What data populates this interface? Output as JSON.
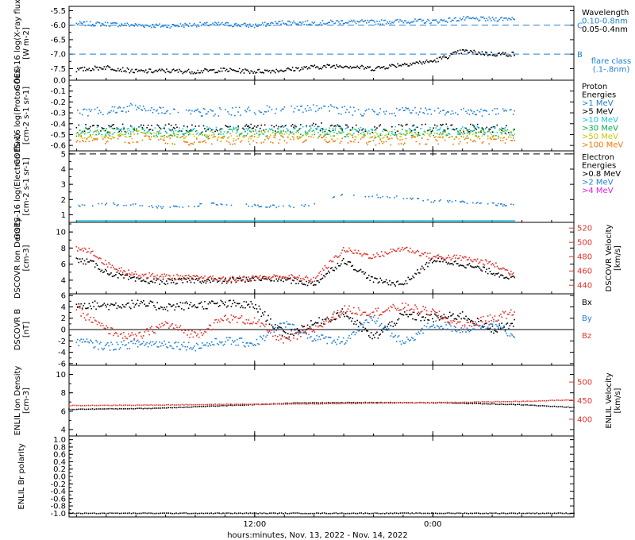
{
  "colors": {
    "black": "#000000",
    "blue": "#1e7fd6",
    "red": "#e0302a",
    "green": "#00b050",
    "yellow": "#c8c800",
    "orange": "#f07800",
    "cyan": "#19c6e0",
    "magenta": "#e020e0"
  },
  "x_axis": {
    "title": "hours:minutes, Nov. 13, 2022 - Nov. 14, 2022",
    "range_hours": [
      -0.5,
      33.5
    ],
    "ticks": [
      {
        "hour": 12,
        "label": "12:00"
      },
      {
        "hour": 24,
        "label": "0:00"
      }
    ]
  },
  "chart_data": [
    {
      "id": "goes-xray",
      "type": "scatter",
      "ylabel": "GOES-16 log(X-ray flux) [W m-2]",
      "ylim": [
        -7.9,
        -5.35
      ],
      "yticks": [
        "-5.5",
        "-6.0",
        "-6.5",
        "-7.0",
        "-7.5"
      ],
      "ytick_values": [
        -5.5,
        -6.0,
        -6.5,
        -7.0,
        -7.5
      ],
      "flare_levels": [
        {
          "value": -6.0,
          "label": "C"
        },
        {
          "value": -7.0,
          "label": "B"
        }
      ],
      "legend": {
        "title": "Wavelength",
        "items": [
          "0.10-0.8nm",
          "0.05-0.4nm"
        ],
        "note": [
          "flare class",
          "(.1-.8nm)"
        ]
      },
      "series": [
        {
          "name": "0.10-0.8nm",
          "color": "blue",
          "x": [
            0,
            2,
            4,
            6,
            8,
            10,
            12,
            14,
            16,
            18,
            20,
            22,
            24,
            26,
            28,
            29.5
          ],
          "y": [
            -5.95,
            -5.96,
            -6.0,
            -6.03,
            -5.98,
            -5.97,
            -6.02,
            -5.9,
            -5.93,
            -5.88,
            -5.9,
            -5.86,
            -5.87,
            -5.78,
            -5.8,
            -5.75
          ]
        },
        {
          "name": "0.05-0.4nm",
          "color": "black",
          "x": [
            0,
            2,
            4,
            6,
            8,
            10,
            12,
            14,
            16,
            18,
            20,
            22,
            24,
            26,
            28,
            29.5
          ],
          "y": [
            -7.55,
            -7.45,
            -7.6,
            -7.58,
            -7.6,
            -7.55,
            -7.6,
            -7.55,
            -7.45,
            -7.4,
            -7.5,
            -7.35,
            -7.25,
            -6.9,
            -7.0,
            -7.0
          ]
        }
      ]
    },
    {
      "id": "goes-proton",
      "type": "scatter",
      "ylabel": "GOES-16 log(Proton flux) [cm-2 s-1 sr-1]",
      "ylim": [
        -0.65,
        0.0
      ],
      "yticks": [
        "0.0",
        "-0.1",
        "-0.2",
        "-0.3",
        "-0.4",
        "-0.5",
        "-0.6"
      ],
      "ytick_values": [
        0.0,
        -0.1,
        -0.2,
        -0.3,
        -0.4,
        -0.5,
        -0.6
      ],
      "legend": {
        "title": [
          "Proton",
          "Energies"
        ],
        "items": [
          ">1 MeV",
          ">5 MeV",
          ">10 MeV",
          ">30 MeV",
          ">50 MeV",
          ">100 MeV"
        ]
      },
      "series": [
        {
          "name": ">1 MeV",
          "color": "blue",
          "x": [
            0,
            4,
            8,
            12,
            16,
            20,
            24,
            29.5
          ],
          "y": [
            -0.3,
            -0.25,
            -0.3,
            -0.28,
            -0.25,
            -0.3,
            -0.28,
            -0.3
          ]
        },
        {
          "name": ">5 MeV",
          "color": "black",
          "x": [
            0,
            4,
            8,
            12,
            16,
            20,
            24,
            29.5
          ],
          "y": [
            -0.45,
            -0.43,
            -0.45,
            -0.44,
            -0.43,
            -0.45,
            -0.44,
            -0.45
          ]
        },
        {
          "name": ">10 MeV",
          "color": "cyan",
          "x": [
            0,
            4,
            8,
            12,
            16,
            20,
            24,
            29.5
          ],
          "y": [
            -0.47,
            -0.46,
            -0.47,
            -0.46,
            -0.46,
            -0.47,
            -0.46,
            -0.47
          ]
        },
        {
          "name": ">30 MeV",
          "color": "green",
          "x": [
            0,
            4,
            8,
            12,
            16,
            20,
            24,
            29.5
          ],
          "y": [
            -0.48,
            -0.48,
            -0.49,
            -0.48,
            -0.48,
            -0.49,
            -0.48,
            -0.48
          ]
        },
        {
          "name": ">50 MeV",
          "color": "yellow",
          "x": [
            0,
            4,
            8,
            12,
            16,
            20,
            24,
            29.5
          ],
          "y": [
            -0.5,
            -0.5,
            -0.51,
            -0.5,
            -0.5,
            -0.51,
            -0.5,
            -0.5
          ]
        },
        {
          "name": ">100 MeV",
          "color": "orange",
          "x": [
            0,
            4,
            8,
            12,
            16,
            20,
            24,
            29.5
          ],
          "y": [
            -0.55,
            -0.54,
            -0.56,
            -0.55,
            -0.54,
            -0.56,
            -0.55,
            -0.55
          ]
        }
      ]
    },
    {
      "id": "goes-electron",
      "type": "scatter",
      "ylabel": "GOES-16 log(Electron flux) [cm-2 s-1 sr-1]",
      "ylim": [
        0.5,
        5.2
      ],
      "yticks": [
        "5",
        "4",
        "3",
        "2",
        "1"
      ],
      "ytick_values": [
        5,
        4,
        3,
        2,
        1
      ],
      "dashed_level": 5,
      "legend": {
        "title": [
          "Electron",
          "Energies"
        ],
        "items": [
          ">0.8 MeV",
          ">2 MeV",
          ">4 MeV"
        ]
      },
      "series": [
        {
          "name": ">0.8 MeV",
          "color": "black",
          "x": [],
          "y": []
        },
        {
          "name": ">2 MeV",
          "color": "blue",
          "x": [
            0,
            3,
            6,
            9,
            12,
            15,
            18,
            21,
            24,
            27,
            29.5
          ],
          "y": [
            1.6,
            1.7,
            1.5,
            1.7,
            1.6,
            1.5,
            2.3,
            2.2,
            1.9,
            1.8,
            1.6
          ]
        },
        {
          "name": ">2 MeV floor",
          "color": "cyan",
          "x": [
            0,
            29.5
          ],
          "y": [
            0.6,
            0.6
          ]
        },
        {
          "name": ">4 MeV",
          "color": "magenta",
          "x": [],
          "y": []
        }
      ]
    },
    {
      "id": "dscovr-plasma",
      "type": "scatter",
      "ylabel": "DSCOVR Ion Density [cm-3]",
      "y2label": "DSCOVR Velocity [km/s]",
      "ylim": [
        2.3,
        11.2
      ],
      "yticks": [
        "10",
        "8",
        "6",
        "4"
      ],
      "ytick_values": [
        10,
        8,
        6,
        4
      ],
      "y2lim": [
        428,
        528
      ],
      "y2ticks": [
        "520",
        "500",
        "480",
        "460",
        "440"
      ],
      "y2tick_values": [
        520,
        500,
        480,
        460,
        440
      ],
      "series": [
        {
          "name": "Ion Density",
          "color": "black",
          "x": [
            0,
            1,
            2,
            3,
            4,
            6,
            8,
            10,
            12,
            14,
            16,
            18,
            20,
            22,
            24,
            26,
            28,
            29.5
          ],
          "y": [
            6.5,
            6.2,
            5.0,
            4.5,
            4.0,
            3.8,
            4.0,
            3.9,
            4.2,
            4.1,
            3.5,
            6.5,
            4.0,
            3.5,
            6.5,
            6.0,
            5.0,
            4.2
          ]
        },
        {
          "name": "Velocity",
          "color": "red",
          "axis": "y2",
          "x": [
            0,
            1,
            2,
            3,
            4,
            6,
            8,
            10,
            12,
            14,
            16,
            18,
            20,
            22,
            24,
            26,
            28,
            29.5
          ],
          "y": [
            490,
            488,
            470,
            462,
            455,
            452,
            450,
            448,
            450,
            452,
            448,
            490,
            480,
            492,
            480,
            478,
            470,
            455
          ]
        }
      ]
    },
    {
      "id": "dscovr-mag",
      "type": "scatter",
      "ylabel": "DSCOVR B [nT]",
      "ylim": [
        -6.3,
        6.3
      ],
      "yticks": [
        "6",
        "4",
        "2",
        "0",
        "-2",
        "-4",
        "-6"
      ],
      "ytick_values": [
        6,
        4,
        2,
        0,
        -2,
        -4,
        -6
      ],
      "legend": {
        "items": [
          "Bx",
          "By",
          "Bz"
        ]
      },
      "series": [
        {
          "name": "Bx",
          "color": "black",
          "x": [
            0,
            2,
            4,
            6,
            8,
            10,
            12,
            14,
            16,
            18,
            20,
            22,
            24,
            26,
            28,
            29.5
          ],
          "y": [
            4.5,
            4.2,
            4.5,
            4.0,
            4.3,
            4.5,
            4.2,
            -1.0,
            1.0,
            3.0,
            -1.5,
            2.5,
            2.0,
            2.5,
            0.0,
            1.0
          ]
        },
        {
          "name": "By",
          "color": "blue",
          "x": [
            0,
            2,
            4,
            6,
            8,
            10,
            12,
            14,
            16,
            18,
            20,
            22,
            24,
            26,
            28,
            29.5
          ],
          "y": [
            -2.0,
            -3.0,
            -2.5,
            -2.5,
            -3.0,
            -2.0,
            -2.5,
            1.0,
            -1.5,
            -2.0,
            2.0,
            -2.5,
            1.0,
            0.0,
            1.0,
            -1.0
          ]
        },
        {
          "name": "Bz",
          "color": "red",
          "x": [
            0,
            2,
            4,
            6,
            8,
            10,
            12,
            14,
            16,
            18,
            20,
            22,
            24,
            26,
            28,
            29.5
          ],
          "y": [
            3.5,
            0.0,
            -1.5,
            1.0,
            -1.0,
            2.0,
            1.5,
            -2.0,
            0.0,
            3.5,
            3.0,
            4.0,
            3.0,
            0.5,
            2.0,
            3.0
          ]
        }
      ]
    },
    {
      "id": "enlil-plasma",
      "type": "line",
      "ylabel": "ENLIL Ion Density [cm-3]",
      "y2label": "ENLIL Velocity [km/s]",
      "ylim": [
        3.3,
        11.0
      ],
      "yticks": [
        "10",
        "8",
        "6",
        "4"
      ],
      "ytick_values": [
        10,
        8,
        6,
        4
      ],
      "y2lim": [
        355,
        545
      ],
      "y2ticks": [
        "500",
        "450",
        "400"
      ],
      "y2tick_values": [
        500,
        450,
        400
      ],
      "series": [
        {
          "name": "Ion Density",
          "color": "black",
          "x": [
            -0.5,
            5,
            10,
            15,
            20,
            25,
            30,
            33.5
          ],
          "y": [
            6.2,
            6.3,
            6.6,
            6.9,
            6.95,
            6.9,
            6.7,
            6.4
          ]
        },
        {
          "name": "Velocity",
          "color": "red",
          "axis": "y2",
          "x": [
            -0.5,
            5,
            10,
            15,
            20,
            25,
            30,
            33.5
          ],
          "y": [
            437,
            438,
            440,
            441,
            443,
            445,
            448,
            452
          ]
        }
      ]
    },
    {
      "id": "enlil-polarity",
      "type": "line",
      "ylabel": "ENLIL Br polarity",
      "ylim": [
        -1.1,
        1.1
      ],
      "yticks": [
        "1.0",
        "0.8",
        "0.6",
        "0.4",
        "0.2",
        "0.0",
        "-0.2",
        "-0.4",
        "-0.6",
        "-0.8",
        "-1.0"
      ],
      "ytick_values": [
        1.0,
        0.8,
        0.6,
        0.4,
        0.2,
        0.0,
        -0.2,
        -0.4,
        -0.6,
        -0.8,
        -1.0
      ],
      "series": [
        {
          "name": "Br polarity",
          "color": "black",
          "x": [
            -0.5,
            33.5
          ],
          "y": [
            -1.0,
            -1.0
          ]
        }
      ]
    }
  ]
}
